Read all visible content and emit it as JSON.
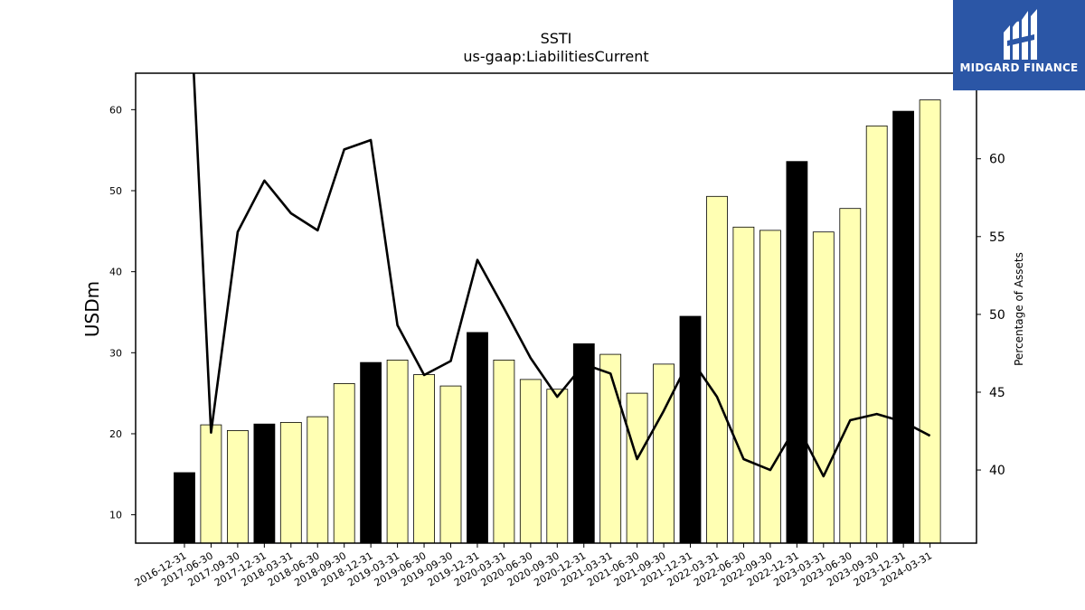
{
  "logo": {
    "text": "MIDGARD FINANCE",
    "bg_color": "#2b56a6",
    "text_color": "#ffffff"
  },
  "chart_data": {
    "type": "bar",
    "title": "SSTI",
    "subtitle": "us-gaap:LiabilitiesCurrent",
    "ylabel": "USDm",
    "y2label": "Percentage of Assets",
    "ylim": [
      6.5,
      64.5
    ],
    "y2lim": [
      35.3,
      65.5
    ],
    "yticks": [
      10,
      20,
      30,
      40,
      50,
      60
    ],
    "y2ticks": [
      40,
      45,
      50,
      55,
      60
    ],
    "grid": false,
    "categories": [
      "2016-12-31",
      "2017-06-30",
      "2017-09-30",
      "2017-12-31",
      "2018-03-31",
      "2018-06-30",
      "2018-09-30",
      "2018-12-31",
      "2019-03-31",
      "2019-06-30",
      "2019-09-30",
      "2019-12-31",
      "2020-03-31",
      "2020-06-30",
      "2020-09-30",
      "2020-12-31",
      "2021-03-31",
      "2021-06-30",
      "2021-09-30",
      "2021-12-31",
      "2022-03-31",
      "2022-06-30",
      "2022-09-30",
      "2022-12-31",
      "2023-03-31",
      "2023-06-30",
      "2023-09-30",
      "2023-12-31",
      "2024-03-31"
    ],
    "series": [
      {
        "kind": "bar",
        "values": [
          15.2,
          21.1,
          20.4,
          21.2,
          21.4,
          22.1,
          26.2,
          28.8,
          29.1,
          27.3,
          25.9,
          32.5,
          29.1,
          26.7,
          25.5,
          31.1,
          29.8,
          25.0,
          28.6,
          34.5,
          49.3,
          45.5,
          45.1,
          53.6,
          44.9,
          47.8,
          58.0,
          59.8,
          61.2
        ],
        "colors": {
          "year_end": "#000000",
          "other": "#ffffb3",
          "edge": "#000000"
        }
      },
      {
        "kind": "line",
        "axis": "right",
        "color": "#000000",
        "values": [
          78.0,
          42.4,
          55.3,
          58.6,
          56.5,
          55.4,
          60.6,
          61.2,
          49.3,
          46.1,
          47.0,
          53.5,
          50.4,
          47.2,
          44.7,
          46.8,
          46.2,
          40.7,
          43.8,
          47.2,
          44.7,
          40.7,
          40.0,
          42.9,
          39.6,
          43.2,
          43.6,
          43.1,
          42.2
        ]
      }
    ]
  }
}
